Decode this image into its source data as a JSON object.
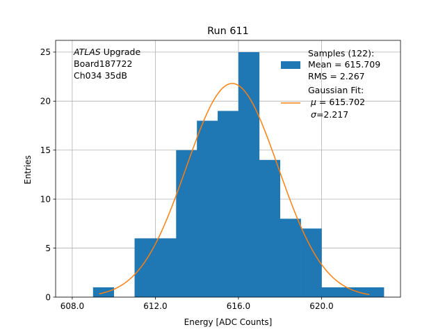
{
  "chart_data": {
    "type": "bar",
    "title": "Run 611",
    "xlabel": "Energy [ADC Counts]",
    "ylabel": "Entries",
    "xlim": [
      607.2,
      623.8
    ],
    "ylim": [
      0,
      26.2
    ],
    "xticks": [
      608.0,
      612.0,
      616.0,
      620.0
    ],
    "xtick_labels": [
      "608.0",
      "612.0",
      "616.0",
      "620.0"
    ],
    "yticks": [
      0,
      5,
      10,
      15,
      20,
      25
    ],
    "ytick_labels": [
      "0",
      "5",
      "10",
      "15",
      "20",
      "25"
    ],
    "grid": true,
    "histogram": {
      "bin_edges": [
        609,
        610,
        611,
        612,
        613,
        614,
        615,
        616,
        617,
        618,
        619,
        620,
        621,
        622,
        623
      ],
      "counts": [
        1,
        0,
        6,
        6,
        15,
        18,
        19,
        25,
        14,
        8,
        7,
        1,
        1,
        1
      ],
      "color": "#1f77b4"
    },
    "fit": {
      "mu": 615.702,
      "sigma": 2.217,
      "peak": 21.8,
      "x_range": [
        609.3,
        622.3
      ],
      "color": "#ff7f0e"
    },
    "annotation": {
      "italic": "ATLAS",
      "line1_rest": " Upgrade",
      "line2": " Board187722",
      "line3": " Ch034 35dB"
    },
    "legend": {
      "position": "top-right",
      "samples_title": "Samples (122):",
      "samples_mean": " Mean = 615.709",
      "samples_rms": " RMS = 2.267",
      "fit_title": "Gaussian Fit:",
      "fit_mu": " = 615.702",
      "fit_mu_symbol": "μ",
      "fit_sigma": "=2.217",
      "fit_sigma_symbol": "σ"
    }
  }
}
